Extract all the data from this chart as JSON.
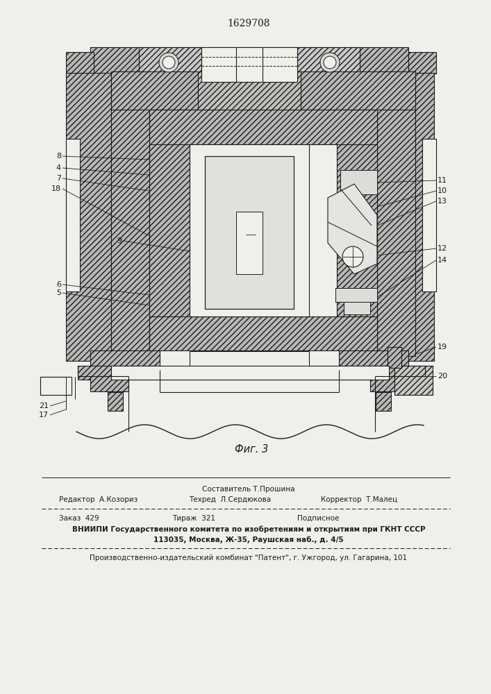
{
  "patent_number": "1629708",
  "figure_label": "Фиг. 3",
  "bg": "#f0efea",
  "lc": "#1a1a1a",
  "hfc": "#b8b8b8",
  "wfc": "#f0efea",
  "footer": {
    "sostavitel": "Составитель Т.Прошина",
    "redaktor": "Редактор  А.Козориз",
    "tehred": "Техред  Л.Сердюкова",
    "korrektor": "Корректор  Т.Малец",
    "zakaz": "Заказ  429",
    "tirazh": "Тираж  321",
    "podpisnoe": "Подписное",
    "vniiipi1": "ВНИИПИ Государственного комитета по изобретениям и открытиям при ГКНТ СССР",
    "vniiipi2": "113035, Москва, Ж-35, Раушская наб., д. 4/5",
    "kombnat": "Производственно-издательский комбинат \"Патент\", г. Ужгород, ул. Гагарина, 101"
  }
}
